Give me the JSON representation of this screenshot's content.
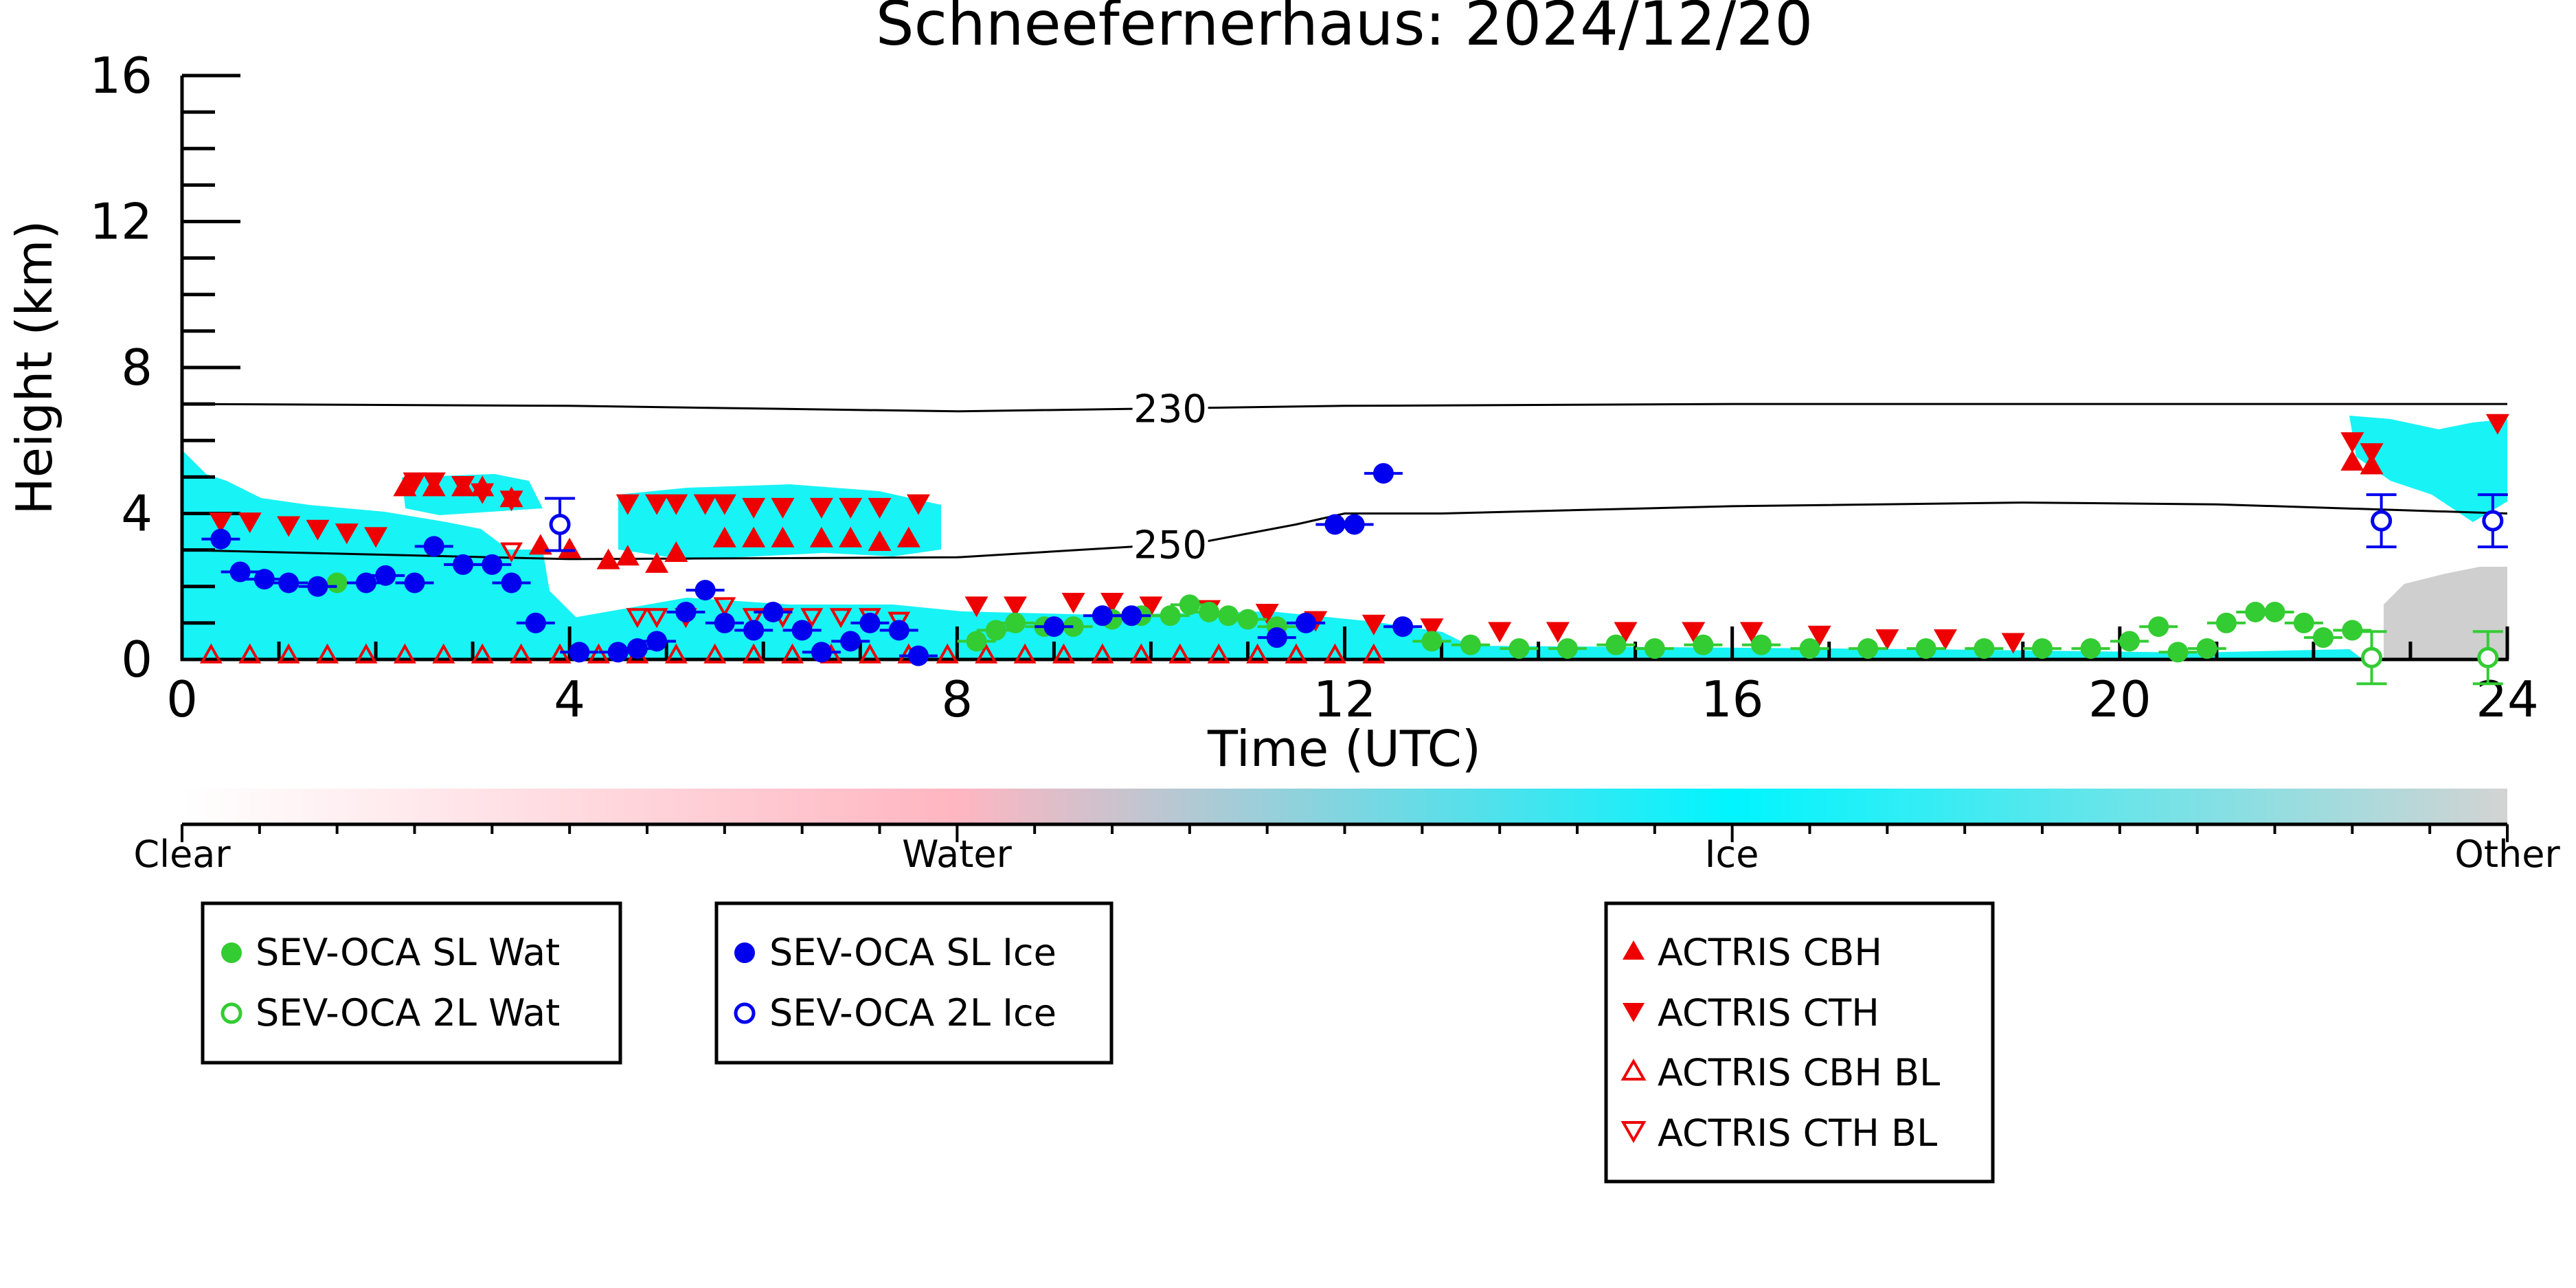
{
  "chart_data": {
    "type": "scatter",
    "title": "Schneefernerhaus: 2024/12/20",
    "xlabel": "Time (UTC)",
    "ylabel": "Height (km)",
    "xlim": [
      0,
      24
    ],
    "ylim": [
      0,
      16
    ],
    "xticks": [
      "0",
      "4",
      "8",
      "12",
      "16",
      "20",
      "24"
    ],
    "yticks": [
      "0",
      "4",
      "8",
      "12",
      "16"
    ],
    "colorbar": {
      "labels": [
        "Clear",
        "Water",
        "Ice",
        "Other"
      ],
      "colors": [
        "#ffffff",
        "#ffb6c1",
        "#00ffff",
        "#d3d3d3"
      ]
    },
    "contours": [
      {
        "label": "230",
        "x": [
          0,
          4,
          8,
          12,
          16,
          20,
          24
        ],
        "y": [
          7.0,
          6.95,
          6.8,
          6.95,
          7.0,
          7.0,
          7.0
        ]
      },
      {
        "label": "250",
        "x": [
          0,
          4,
          8,
          10.5,
          11.5,
          12,
          13,
          16,
          19,
          21,
          24
        ],
        "y": [
          3.0,
          2.75,
          2.8,
          3.2,
          3.7,
          4.0,
          4.0,
          4.2,
          4.3,
          4.25,
          4.0
        ]
      }
    ],
    "series": [
      {
        "name": "SEV-OCA SL Wat",
        "color": "#33cc33",
        "marker": "filled-circle",
        "x": [
          1.6,
          8.2,
          8.4,
          8.6,
          8.9,
          9.2,
          9.6,
          9.9,
          10.2,
          10.4,
          10.6,
          10.8,
          11.0,
          11.3,
          12.9,
          13.3,
          13.8,
          14.3,
          14.8,
          15.2,
          15.7,
          16.3,
          16.8,
          17.4,
          18.0,
          18.6,
          19.2,
          19.7,
          20.1,
          20.4,
          20.6,
          20.9,
          21.1,
          21.4,
          21.6,
          21.9,
          22.1,
          22.4
        ],
        "y": [
          2.1,
          0.5,
          0.8,
          1.0,
          0.9,
          0.9,
          1.1,
          1.2,
          1.2,
          1.5,
          1.3,
          1.2,
          1.1,
          0.9,
          0.5,
          0.4,
          0.3,
          0.3,
          0.4,
          0.3,
          0.4,
          0.4,
          0.3,
          0.3,
          0.3,
          0.3,
          0.3,
          0.3,
          0.5,
          0.9,
          0.2,
          0.3,
          1.0,
          1.3,
          1.3,
          1.0,
          0.6,
          0.8
        ]
      },
      {
        "name": "SEV-OCA 2L Wat",
        "color": "#33cc33",
        "marker": "open-circle",
        "x": [
          22.6,
          23.8
        ],
        "y": [
          0.05,
          0.05
        ]
      },
      {
        "name": "SEV-OCA SL Ice",
        "color": "#0000ee",
        "marker": "filled-circle",
        "x": [
          0.4,
          0.6,
          0.85,
          1.1,
          1.4,
          1.9,
          2.1,
          2.4,
          2.6,
          2.9,
          3.2,
          3.4,
          3.65,
          4.1,
          4.5,
          4.7,
          4.9,
          5.2,
          5.4,
          5.6,
          5.9,
          6.1,
          6.4,
          6.6,
          6.9,
          7.1,
          7.4,
          7.6,
          9.0,
          9.5,
          9.8,
          11.3,
          11.6,
          11.9,
          12.1,
          12.4,
          12.6
        ],
        "y": [
          3.3,
          2.4,
          2.2,
          2.1,
          2.0,
          2.1,
          2.3,
          2.1,
          3.1,
          2.6,
          2.6,
          2.1,
          1.0,
          0.2,
          0.2,
          0.3,
          0.5,
          1.3,
          1.9,
          1.0,
          0.8,
          1.3,
          0.8,
          0.2,
          0.5,
          1.0,
          0.8,
          0.1,
          0.9,
          1.2,
          1.2,
          0.6,
          1.0,
          3.7,
          3.7,
          5.1,
          0.9
        ]
      },
      {
        "name": "SEV-OCA 2L Ice",
        "color": "#0000ee",
        "marker": "open-circle",
        "x": [
          3.9,
          22.7,
          23.85
        ],
        "y": [
          3.7,
          3.8,
          3.8
        ]
      },
      {
        "name": "ACTRIS CBH",
        "color": "#ee0000",
        "marker": "triangle-up",
        "x": [
          2.3,
          2.6,
          2.9,
          3.1,
          3.4,
          3.7,
          4.0,
          4.4,
          4.6,
          4.9,
          5.1,
          5.6,
          5.9,
          6.2,
          6.6,
          6.9,
          7.2,
          7.5,
          22.4,
          22.6
        ],
        "y": [
          4.7,
          4.7,
          4.7,
          4.7,
          4.4,
          3.1,
          3.0,
          2.7,
          2.8,
          2.6,
          2.9,
          3.3,
          3.3,
          3.3,
          3.3,
          3.3,
          3.2,
          3.3,
          5.4,
          5.3
        ]
      },
      {
        "name": "ACTRIS CTH",
        "color": "#ee0000",
        "marker": "triangle-down",
        "x": [
          0.4,
          0.7,
          1.1,
          1.4,
          1.7,
          2.0,
          2.4,
          2.6,
          2.9,
          3.1,
          3.4,
          4.6,
          4.9,
          5.1,
          5.4,
          5.6,
          5.9,
          6.2,
          6.6,
          6.9,
          7.2,
          7.6,
          8.2,
          8.6,
          9.2,
          9.6,
          10.0,
          10.6,
          11.2,
          11.7,
          12.3,
          12.9,
          13.6,
          14.2,
          14.9,
          15.6,
          16.2,
          16.9,
          17.6,
          18.2,
          18.9,
          22.4,
          22.6,
          23.9
        ],
        "y": [
          3.8,
          3.8,
          3.7,
          3.6,
          3.5,
          3.4,
          4.9,
          4.9,
          4.8,
          4.6,
          4.4,
          4.3,
          4.3,
          4.3,
          4.3,
          4.3,
          4.2,
          4.2,
          4.2,
          4.2,
          4.2,
          4.3,
          1.5,
          1.5,
          1.6,
          1.6,
          1.5,
          1.4,
          1.3,
          1.1,
          1.0,
          0.9,
          0.8,
          0.8,
          0.8,
          0.8,
          0.8,
          0.7,
          0.6,
          0.6,
          0.5,
          6.0,
          5.7,
          6.5
        ]
      },
      {
        "name": "ACTRIS CBH BL",
        "color": "#ee0000",
        "marker": "open-triangle-up",
        "x": [
          0.3,
          0.7,
          1.1,
          1.5,
          1.9,
          2.3,
          2.7,
          3.1,
          3.5,
          3.9,
          4.3,
          4.7,
          5.1,
          5.5,
          5.9,
          6.3,
          6.7,
          7.1,
          7.5,
          7.9,
          8.3,
          8.7,
          9.1,
          9.5,
          9.9,
          10.3,
          10.7,
          11.1,
          11.5,
          11.9,
          12.3
        ],
        "y": [
          0.1,
          0.1,
          0.1,
          0.1,
          0.1,
          0.1,
          0.1,
          0.1,
          0.1,
          0.1,
          0.1,
          0.1,
          0.1,
          0.1,
          0.1,
          0.1,
          0.1,
          0.1,
          0.1,
          0.1,
          0.1,
          0.1,
          0.1,
          0.1,
          0.1,
          0.1,
          0.1,
          0.1,
          0.1,
          0.1,
          0.1
        ]
      },
      {
        "name": "ACTRIS CTH BL",
        "color": "#ee0000",
        "marker": "open-triangle-down",
        "x": [
          3.4,
          4.7,
          4.9,
          5.2,
          5.6,
          5.9,
          6.2,
          6.5,
          6.8,
          7.1,
          7.4
        ],
        "y": [
          3.0,
          1.2,
          1.2,
          1.2,
          1.5,
          1.2,
          1.2,
          1.2,
          1.2,
          1.2,
          1.1
        ]
      }
    ]
  }
}
